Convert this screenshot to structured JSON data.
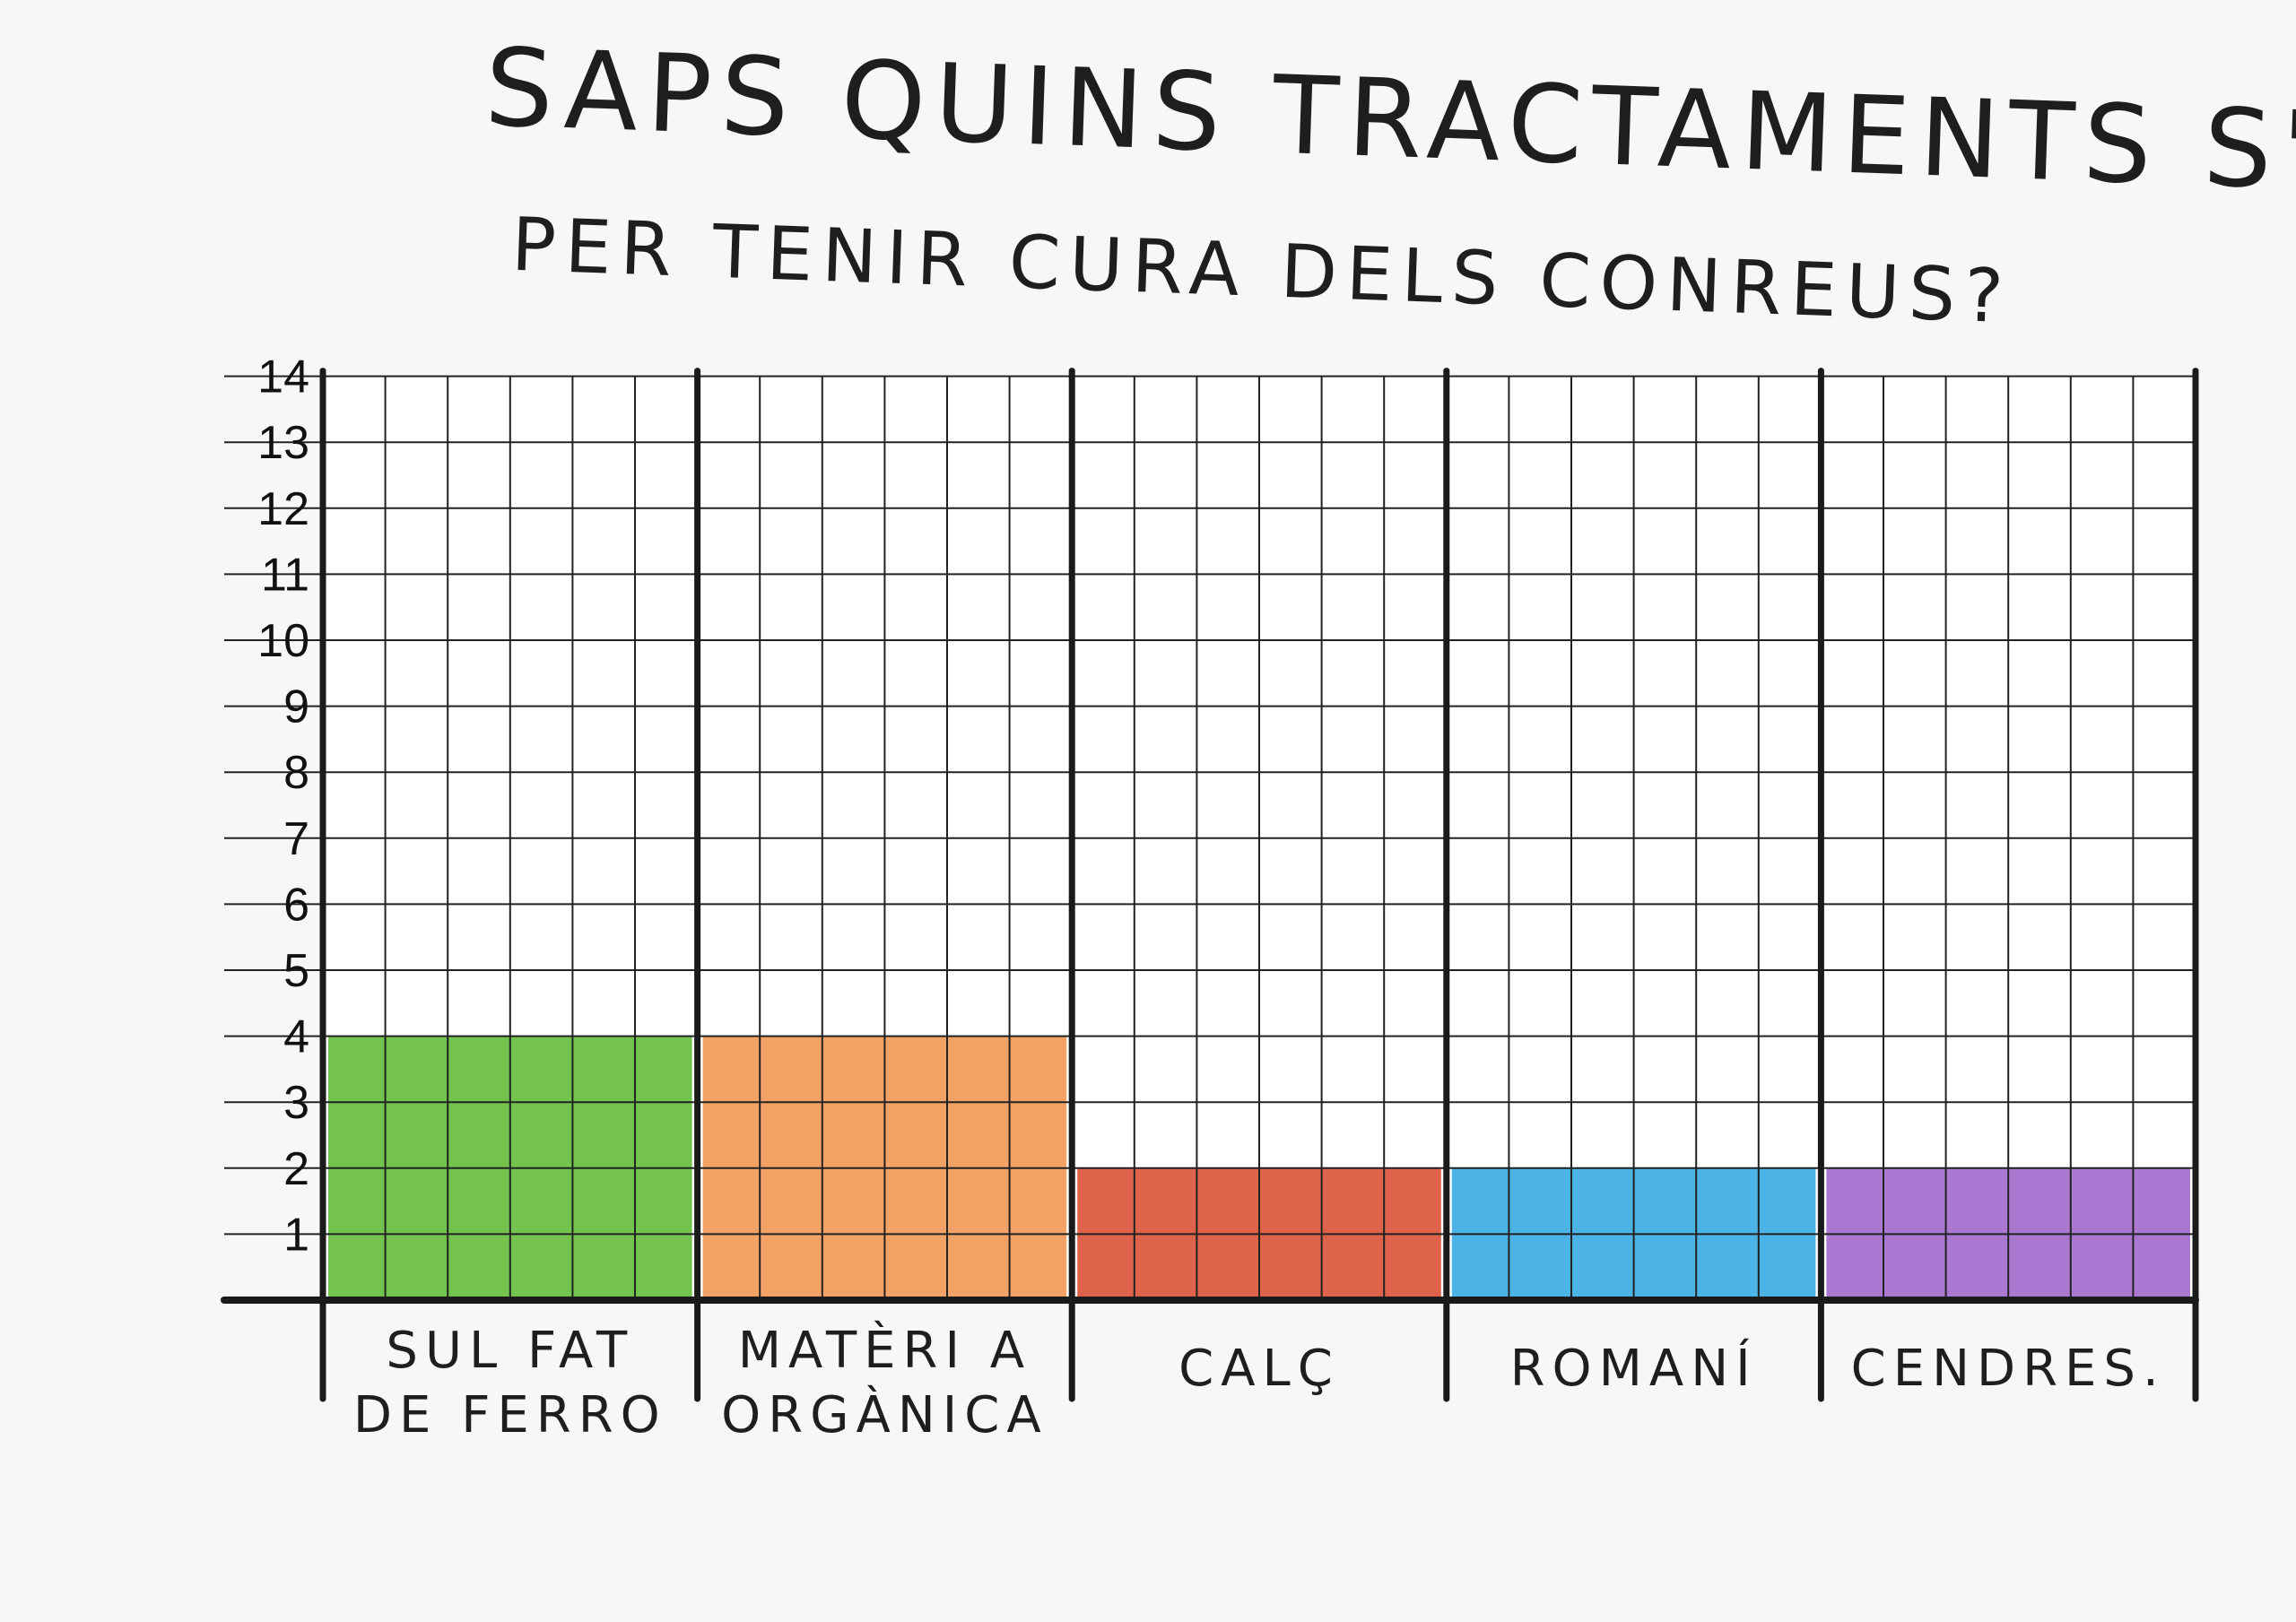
{
  "title_lines": [
    "SAPS QUINS TRACTAMENTS S'UTILITZAVEN",
    "PER TENIR CURA DELS CONREUS?"
  ],
  "chart_data": {
    "type": "bar",
    "title": "SAPS QUINS TRACTAMENTS S'UTILITZAVEN PER TENIR CURA DELS CONREUS?",
    "categories": [
      "SUL FAT DE FERRO",
      "MATÈRI A ORGÀNICA",
      "CALÇ",
      "ROMANÍ",
      "CENDRES."
    ],
    "category_lines": [
      [
        "SUL FAT",
        "DE FERRO"
      ],
      [
        "MATÈRI A",
        "ORGÀNICA"
      ],
      [
        "CALÇ"
      ],
      [
        "ROMANÍ"
      ],
      [
        "CENDRES."
      ]
    ],
    "values": [
      4,
      4,
      2,
      2,
      2
    ],
    "colors": [
      "#5cb82f",
      "#f0924a",
      "#d9482b",
      "#2ca6e0",
      "#9b5fc9"
    ],
    "ylim": [
      0,
      14
    ],
    "yticks": [
      "1",
      "2",
      "3",
      "4",
      "5",
      "6",
      "7",
      "8",
      "9",
      "10",
      "11",
      "12",
      "13",
      "14"
    ],
    "xlabel": "",
    "ylabel": "",
    "grid": true,
    "legend": "none"
  }
}
